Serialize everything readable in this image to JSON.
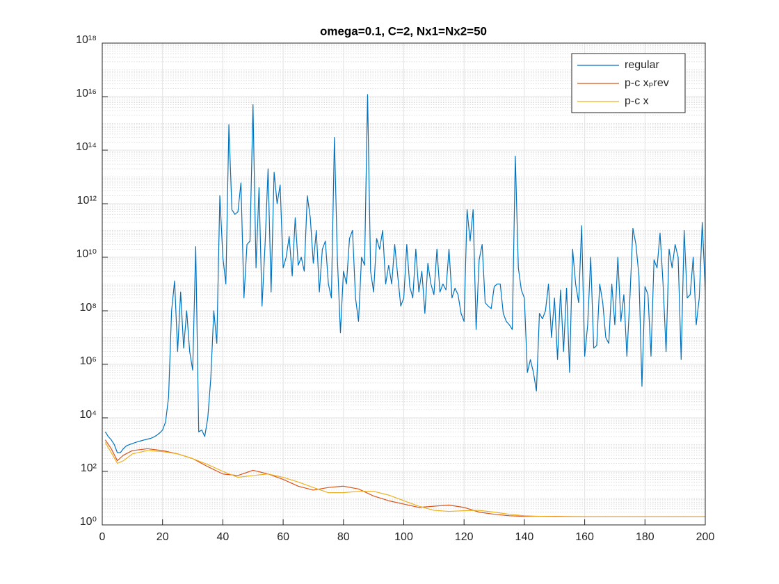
{
  "chart_data": {
    "type": "line",
    "title": "omega=0.1, C=2, Nx1=Nx2=50",
    "xlim": [
      0,
      200
    ],
    "xticks": [
      0,
      20,
      40,
      60,
      80,
      100,
      120,
      140,
      160,
      180,
      200
    ],
    "ylim": [
      1,
      1e+18
    ],
    "log_y": true,
    "yticks": [
      {
        "value": 1,
        "label": "10⁰"
      },
      {
        "value": 100,
        "label": "10²"
      },
      {
        "value": 10000,
        "label": "10⁴"
      },
      {
        "value": 1000000,
        "label": "10⁶"
      },
      {
        "value": 100000000,
        "label": "10⁸"
      },
      {
        "value": 10000000000.0,
        "label": "10¹⁰"
      },
      {
        "value": 1000000000000.0,
        "label": "10¹²"
      },
      {
        "value": 100000000000000.0,
        "label": "10¹⁴"
      },
      {
        "value": 1e+16,
        "label": "10¹⁶"
      },
      {
        "value": 1e+18,
        "label": "10¹⁸"
      }
    ],
    "grid": true,
    "minor_grid": true,
    "legend": "top-right",
    "series": [
      {
        "name": "regular",
        "color": "#0072BD",
        "x": [
          1,
          2,
          3,
          4,
          5,
          6,
          7,
          8,
          9,
          10,
          11,
          12,
          13,
          14,
          15,
          16,
          17,
          18,
          19,
          20,
          21,
          22,
          23,
          24,
          25,
          26,
          27,
          28,
          29,
          30,
          31,
          32,
          33,
          34,
          35,
          36,
          37,
          38,
          39,
          40,
          41,
          42,
          43,
          44,
          45,
          46,
          47,
          48,
          49,
          50,
          51,
          52,
          53,
          54,
          55,
          56,
          57,
          58,
          59,
          60,
          61,
          62,
          63,
          64,
          65,
          66,
          67,
          68,
          69,
          70,
          71,
          72,
          73,
          74,
          75,
          76,
          77,
          78,
          79,
          80,
          81,
          82,
          83,
          84,
          85,
          86,
          87,
          88,
          89,
          90,
          91,
          92,
          93,
          94,
          95,
          96,
          97,
          98,
          99,
          100,
          101,
          102,
          103,
          104,
          105,
          106,
          107,
          108,
          109,
          110,
          111,
          112,
          113,
          114,
          115,
          116,
          117,
          118,
          119,
          120,
          121,
          122,
          123,
          124,
          125,
          126,
          127,
          128,
          129,
          130,
          131,
          132,
          133,
          134,
          135,
          136,
          137,
          138,
          139,
          140,
          141,
          142,
          143,
          144,
          145,
          146,
          147,
          148,
          149,
          150,
          151,
          152,
          153,
          154,
          155,
          156,
          157,
          158,
          159,
          160,
          161,
          162,
          163,
          164,
          165,
          166,
          167,
          168,
          169,
          170,
          171,
          172,
          173,
          174,
          175,
          176,
          177,
          178,
          179,
          180,
          181,
          182,
          183,
          184,
          185,
          186,
          187,
          188,
          189,
          190,
          191,
          192,
          193,
          194,
          195,
          196,
          197,
          198,
          199,
          200
        ],
        "values": [
          3000.0,
          2000.0,
          1500.0,
          1000.0,
          500.0,
          500.0,
          700.0,
          900.0,
          1000.0,
          1100.0,
          1200.0,
          1300.0,
          1400.0,
          1500.0,
          1600.0,
          1700.0,
          1900.0,
          2200.0,
          2700.0,
          3500.0,
          7000.0,
          60000.0,
          100000000.0,
          1300000000.0,
          3000000.0,
          500000000.0,
          4000000.0,
          100000000.0,
          3000000.0,
          600000.0,
          25000000000.0,
          3000.0,
          3500.0,
          2000.0,
          10000.0,
          300000.0,
          100000000.0,
          6000000.0,
          2000000000000.0,
          10000000000.0,
          1000000000.0,
          900000000000000.0,
          600000000000.0,
          400000000000.0,
          500000000000.0,
          6000000000000.0,
          300000000.0,
          30000000000.0,
          40000000000.0,
          5000000000000000.0,
          4000000000.0,
          4000000000000.0,
          150000000.0,
          30000000000.0,
          20000000000000.0,
          500000000.0,
          15000000000000.0,
          1000000000000.0,
          5000000000000.0,
          4000000000.0,
          10000000000.0,
          60000000000.0,
          2000000000.0,
          300000000000.0,
          5000000000.0,
          10000000000.0,
          3000000000.0,
          2000000000000.0,
          300000000000.0,
          6000000000.0,
          100000000000.0,
          500000000.0,
          20000000000.0,
          40000000000.0,
          1000000000.0,
          300000000.0,
          300000000000000.0,
          8000000000.0,
          15000000.0,
          3000000000.0,
          1000000000.0,
          50000000000.0,
          100000000000.0,
          300000000.0,
          40000000.0,
          10000000000.0,
          5000000000.0,
          1.2e+16,
          3000000000.0,
          500000000.0,
          50000000000.0,
          20000000000.0,
          100000000000.0,
          1000000000.0,
          5000000000.0,
          1000000000.0,
          30000000000.0,
          2000000000.0,
          150000000.0,
          300000000.0,
          30000000000.0,
          800000000.0,
          300000000.0,
          20000000000.0,
          500000000.0,
          3000000000.0,
          80000000.0,
          6000000000.0,
          1000000000.0,
          400000000.0,
          20000000000.0,
          500000000.0,
          1000000000.0,
          600000000.0,
          20000000000.0,
          300000000.0,
          700000000.0,
          400000000.0,
          80000000.0,
          40000000.0,
          600000000000.0,
          40000000000.0,
          600000000000.0,
          20000000.0,
          8000000000.0,
          30000000000.0,
          200000000.0,
          150000000.0,
          120000000.0,
          800000000.0,
          1000000000.0,
          1000000000.0,
          80000000.0,
          40000000.0,
          30000000.0,
          20000000.0,
          60000000000000.0,
          4000000000.0,
          600000000.0,
          300000000.0,
          500000.0,
          1500000.0,
          500000.0,
          100000.0,
          80000000.0,
          50000000.0,
          100000000.0,
          1000000000.0,
          10000000.0,
          300000000.0,
          1500000.0,
          600000000.0,
          3000000.0,
          700000000.0,
          500000.0,
          20000000000.0,
          1000000000.0,
          200000000.0,
          150000000000.0,
          2000000.0,
          30000000.0,
          10000000000.0,
          4000000.0,
          5000000.0,
          1000000000.0,
          200000000.0,
          10000000.0,
          6000000.0,
          1000000000.0,
          30000000.0,
          10000000000.0,
          40000000.0,
          400000000.0,
          2000000.0,
          300000000.0,
          120000000000.0,
          30000000000.0,
          2000000000.0,
          150000.0,
          800000000.0,
          400000000.0,
          2000000.0,
          8000000000.0,
          4000000000.0,
          80000000000.0,
          1000000000.0,
          3000000.0,
          20000000000.0,
          4000000000.0,
          30000000000.0,
          10000000000.0,
          1500000.0,
          100000000000.0,
          300000000.0,
          400000000.0,
          10000000000.0,
          30000000.0,
          300000000.0,
          200000000000.0,
          600000000.0
        ]
      },
      {
        "name": "p-c xₚrev",
        "color": "#D95319",
        "x": [
          1,
          3,
          5,
          7,
          10,
          15,
          20,
          25,
          30,
          35,
          40,
          45,
          50,
          55,
          60,
          65,
          70,
          75,
          80,
          85,
          90,
          95,
          100,
          105,
          110,
          115,
          120,
          125,
          130,
          135,
          140,
          145,
          150,
          160,
          170,
          180,
          190,
          200
        ],
        "values": [
          1500.0,
          700.0,
          250.0,
          400.0,
          600.0,
          700.0,
          600.0,
          450.0,
          300.0,
          150.0,
          80,
          70,
          110,
          80,
          50,
          28,
          20,
          25,
          28,
          22,
          12,
          8,
          6,
          4.5,
          5,
          5.5,
          4.5,
          3,
          2.5,
          2.2,
          2.1,
          2.1,
          2.1,
          2,
          2,
          2,
          2,
          2
        ]
      },
      {
        "name": "p-c x",
        "color": "#EDB120",
        "x": [
          1,
          3,
          5,
          7,
          10,
          15,
          20,
          25,
          30,
          35,
          40,
          45,
          50,
          55,
          60,
          65,
          70,
          75,
          80,
          85,
          90,
          95,
          100,
          105,
          110,
          115,
          120,
          125,
          130,
          135,
          140,
          145,
          150,
          160,
          170,
          180,
          190,
          200
        ],
        "values": [
          1200.0,
          500.0,
          200.0,
          250.0,
          450.0,
          600.0,
          550.0,
          450.0,
          300.0,
          180.0,
          100,
          60,
          70,
          80,
          60,
          40,
          25,
          16,
          16,
          18,
          18,
          13,
          8,
          5,
          3.5,
          3.2,
          3.4,
          3.5,
          3,
          2.5,
          2.2,
          2.1,
          2.05,
          2,
          2,
          2,
          2,
          2
        ]
      }
    ]
  }
}
